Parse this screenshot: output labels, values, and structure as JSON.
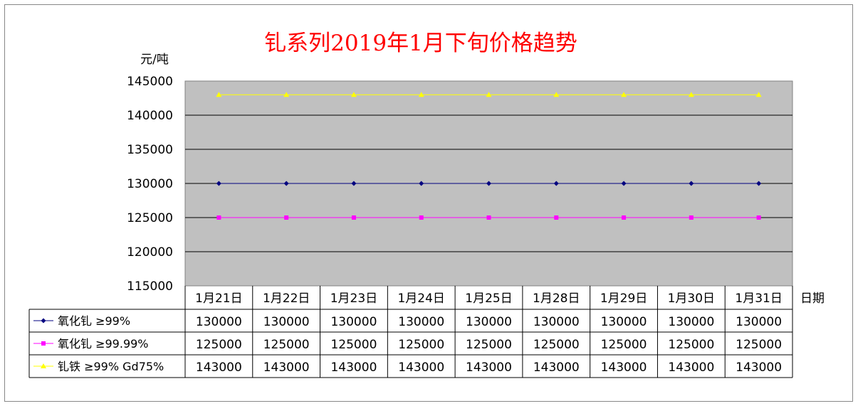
{
  "chart_data": {
    "type": "line",
    "title": "钆系列2019年1月下旬价格趋势",
    "ylabel": "元/吨",
    "xlabel": "日期",
    "ylim": [
      115000,
      145000
    ],
    "yticks": [
      "145000",
      "140000",
      "135000",
      "130000",
      "125000",
      "120000",
      "115000"
    ],
    "categories": [
      "1月21日",
      "1月22日",
      "1月23日",
      "1月24日",
      "1月25日",
      "1月28日",
      "1月29日",
      "1月30日",
      "1月31日"
    ],
    "grid": true,
    "plot_background": "#C0C0C0",
    "title_color": "#FF0000",
    "series": [
      {
        "name": "氧化钆 ≥99%",
        "color": "#000080",
        "marker": "diamond",
        "values": [
          130000,
          130000,
          130000,
          130000,
          130000,
          130000,
          130000,
          130000,
          130000
        ],
        "labels": [
          "130000",
          "130000",
          "130000",
          "130000",
          "130000",
          "130000",
          "130000",
          "130000",
          "130000"
        ]
      },
      {
        "name": "氧化钆 ≥99.99%",
        "color": "#FF00FF",
        "marker": "square",
        "values": [
          125000,
          125000,
          125000,
          125000,
          125000,
          125000,
          125000,
          125000,
          125000
        ],
        "labels": [
          "125000",
          "125000",
          "125000",
          "125000",
          "125000",
          "125000",
          "125000",
          "125000",
          "125000"
        ]
      },
      {
        "name": "钆铁 ≥99% Gd75%",
        "color": "#FFFF00",
        "marker": "triangle",
        "values": [
          143000,
          143000,
          143000,
          143000,
          143000,
          143000,
          143000,
          143000,
          143000
        ],
        "labels": [
          "143000",
          "143000",
          "143000",
          "143000",
          "143000",
          "143000",
          "143000",
          "143000",
          "143000"
        ]
      }
    ]
  }
}
